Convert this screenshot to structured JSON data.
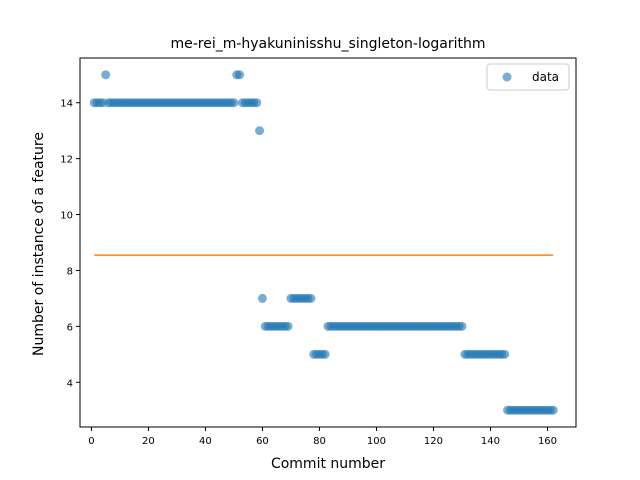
{
  "chart_data": {
    "type": "scatter",
    "title": "me-rei_m-hyakuninisshu_singleton-logarithm",
    "xlabel": "Commit number",
    "ylabel": "Number of instance of a feature",
    "xlim": [
      -4,
      170
    ],
    "ylim": [
      2.4,
      15.6
    ],
    "xticks": [
      0,
      20,
      40,
      60,
      80,
      100,
      120,
      140,
      160
    ],
    "yticks": [
      4,
      6,
      8,
      10,
      12,
      14
    ],
    "legend": {
      "placement": "top-right",
      "entries": [
        "data"
      ]
    },
    "colors": {
      "points": "#1f77b4",
      "line": "#ff7f0e"
    },
    "grid": false,
    "series": [
      {
        "name": "data",
        "type": "scatter",
        "points": [
          [
            1,
            14
          ],
          [
            2,
            14
          ],
          [
            3,
            14
          ],
          [
            4,
            14
          ],
          [
            5,
            15
          ],
          [
            6,
            14
          ],
          [
            7,
            14
          ],
          [
            8,
            14
          ],
          [
            9,
            14
          ],
          [
            10,
            14
          ],
          [
            11,
            14
          ],
          [
            12,
            14
          ],
          [
            13,
            14
          ],
          [
            14,
            14
          ],
          [
            15,
            14
          ],
          [
            16,
            14
          ],
          [
            17,
            14
          ],
          [
            18,
            14
          ],
          [
            19,
            14
          ],
          [
            20,
            14
          ],
          [
            21,
            14
          ],
          [
            22,
            14
          ],
          [
            23,
            14
          ],
          [
            24,
            14
          ],
          [
            25,
            14
          ],
          [
            26,
            14
          ],
          [
            27,
            14
          ],
          [
            28,
            14
          ],
          [
            29,
            14
          ],
          [
            30,
            14
          ],
          [
            31,
            14
          ],
          [
            32,
            14
          ],
          [
            33,
            14
          ],
          [
            34,
            14
          ],
          [
            35,
            14
          ],
          [
            36,
            14
          ],
          [
            37,
            14
          ],
          [
            38,
            14
          ],
          [
            39,
            14
          ],
          [
            40,
            14
          ],
          [
            41,
            14
          ],
          [
            42,
            14
          ],
          [
            43,
            14
          ],
          [
            44,
            14
          ],
          [
            45,
            14
          ],
          [
            46,
            14
          ],
          [
            47,
            14
          ],
          [
            48,
            14
          ],
          [
            49,
            14
          ],
          [
            50,
            14
          ],
          [
            51,
            15
          ],
          [
            52,
            15
          ],
          [
            53,
            14
          ],
          [
            54,
            14
          ],
          [
            55,
            14
          ],
          [
            56,
            14
          ],
          [
            57,
            14
          ],
          [
            58,
            14
          ],
          [
            59,
            13
          ],
          [
            60,
            7
          ],
          [
            61,
            6
          ],
          [
            62,
            6
          ],
          [
            63,
            6
          ],
          [
            64,
            6
          ],
          [
            65,
            6
          ],
          [
            66,
            6
          ],
          [
            67,
            6
          ],
          [
            68,
            6
          ],
          [
            69,
            6
          ],
          [
            70,
            7
          ],
          [
            71,
            7
          ],
          [
            72,
            7
          ],
          [
            73,
            7
          ],
          [
            74,
            7
          ],
          [
            75,
            7
          ],
          [
            76,
            7
          ],
          [
            77,
            7
          ],
          [
            78,
            5
          ],
          [
            79,
            5
          ],
          [
            80,
            5
          ],
          [
            81,
            5
          ],
          [
            82,
            5
          ],
          [
            83,
            6
          ],
          [
            84,
            6
          ],
          [
            85,
            6
          ],
          [
            86,
            6
          ],
          [
            87,
            6
          ],
          [
            88,
            6
          ],
          [
            89,
            6
          ],
          [
            90,
            6
          ],
          [
            91,
            6
          ],
          [
            92,
            6
          ],
          [
            93,
            6
          ],
          [
            94,
            6
          ],
          [
            95,
            6
          ],
          [
            96,
            6
          ],
          [
            97,
            6
          ],
          [
            98,
            6
          ],
          [
            99,
            6
          ],
          [
            100,
            6
          ],
          [
            101,
            6
          ],
          [
            102,
            6
          ],
          [
            103,
            6
          ],
          [
            104,
            6
          ],
          [
            105,
            6
          ],
          [
            106,
            6
          ],
          [
            107,
            6
          ],
          [
            108,
            6
          ],
          [
            109,
            6
          ],
          [
            110,
            6
          ],
          [
            111,
            6
          ],
          [
            112,
            6
          ],
          [
            113,
            6
          ],
          [
            114,
            6
          ],
          [
            115,
            6
          ],
          [
            116,
            6
          ],
          [
            117,
            6
          ],
          [
            118,
            6
          ],
          [
            119,
            6
          ],
          [
            120,
            6
          ],
          [
            121,
            6
          ],
          [
            122,
            6
          ],
          [
            123,
            6
          ],
          [
            124,
            6
          ],
          [
            125,
            6
          ],
          [
            126,
            6
          ],
          [
            127,
            6
          ],
          [
            128,
            6
          ],
          [
            129,
            6
          ],
          [
            130,
            6
          ],
          [
            131,
            5
          ],
          [
            132,
            5
          ],
          [
            133,
            5
          ],
          [
            134,
            5
          ],
          [
            135,
            5
          ],
          [
            136,
            5
          ],
          [
            137,
            5
          ],
          [
            138,
            5
          ],
          [
            139,
            5
          ],
          [
            140,
            5
          ],
          [
            141,
            5
          ],
          [
            142,
            5
          ],
          [
            143,
            5
          ],
          [
            144,
            5
          ],
          [
            145,
            5
          ],
          [
            146,
            3
          ],
          [
            147,
            3
          ],
          [
            148,
            3
          ],
          [
            149,
            3
          ],
          [
            150,
            3
          ],
          [
            151,
            3
          ],
          [
            152,
            3
          ],
          [
            153,
            3
          ],
          [
            154,
            3
          ],
          [
            155,
            3
          ],
          [
            156,
            3
          ],
          [
            157,
            3
          ],
          [
            158,
            3
          ],
          [
            159,
            3
          ],
          [
            160,
            3
          ],
          [
            161,
            3
          ],
          [
            162,
            3
          ]
        ]
      },
      {
        "type": "line",
        "points": [
          [
            1,
            8.55
          ],
          [
            162,
            8.55
          ]
        ]
      }
    ]
  }
}
